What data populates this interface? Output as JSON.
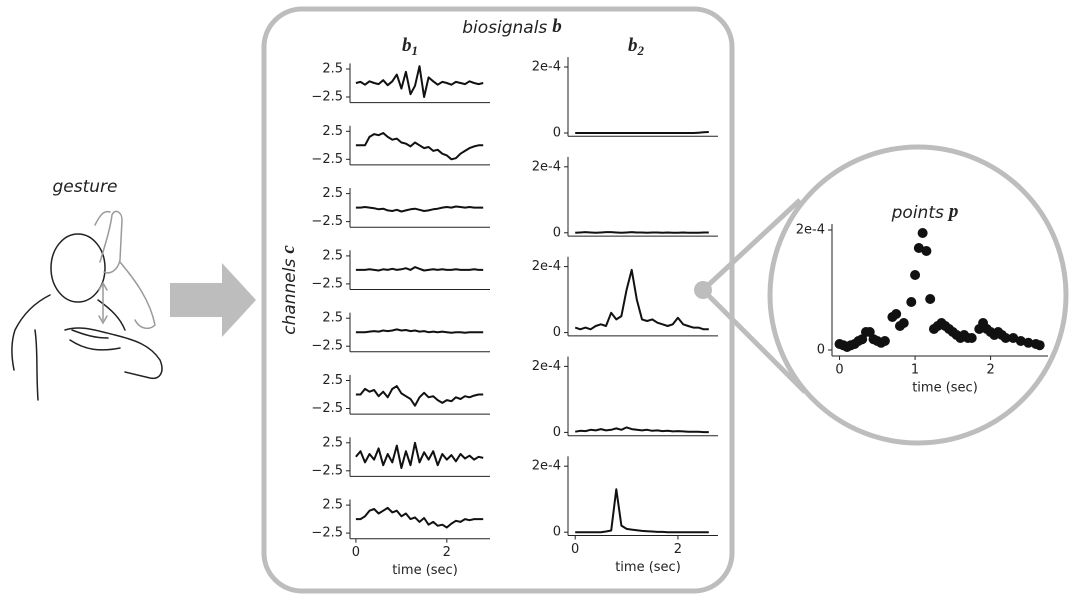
{
  "gesture_label": "gesture",
  "biosignals": {
    "title": "biosignals",
    "title_symbol": "b",
    "channels_label": "channels",
    "channels_symbol": "c",
    "b1": {
      "label": "b",
      "subscript": "1",
      "xlim": [
        -0.13,
        2.95
      ],
      "ylim": [
        -3.5,
        3.5
      ],
      "yticks": [
        2.5,
        {
          "value": -2.5,
          "label": "−2.5"
        }
      ],
      "xticks": [
        0,
        2
      ],
      "xlabel": "time (sec)",
      "x": [
        0,
        0.1,
        0.2,
        0.3,
        0.4,
        0.5,
        0.6,
        0.7,
        0.8,
        0.9,
        1,
        1.1,
        1.2,
        1.3,
        1.4,
        1.5,
        1.6,
        1.7,
        1.8,
        1.9,
        2,
        2.1,
        2.2,
        2.3,
        2.4,
        2.5,
        2.6,
        2.7,
        2.8
      ],
      "channels": [
        [
          0,
          0.2,
          -0.3,
          0.3,
          0,
          -0.2,
          0.5,
          -0.4,
          0.3,
          1.5,
          -1,
          2,
          -2,
          -0.5,
          3,
          -2.5,
          1,
          0.3,
          -0.3,
          0.2,
          0,
          -0.3,
          0.2,
          0,
          -0.2,
          0.3,
          0,
          -0.2,
          0
        ],
        [
          0,
          0,
          0,
          1.5,
          2,
          1.8,
          2.2,
          1.5,
          1,
          1.2,
          0.5,
          0.3,
          -0.2,
          0.5,
          0,
          -0.5,
          -0.3,
          -1,
          -0.8,
          -1.5,
          -1.8,
          -2.5,
          -2.3,
          -1.5,
          -1,
          -0.5,
          -0.2,
          0,
          0
        ],
        [
          0,
          0,
          0.1,
          0,
          -0.1,
          -0.3,
          -0.2,
          -0.5,
          -0.6,
          -0.4,
          -0.7,
          -0.5,
          -0.3,
          -0.2,
          -0.4,
          -0.6,
          -0.5,
          -0.3,
          -0.2,
          0,
          0.1,
          0,
          0.2,
          0.1,
          0,
          0.1,
          0,
          0,
          0
        ],
        [
          0,
          0,
          0,
          0.1,
          0,
          -0.1,
          0.1,
          0,
          0.2,
          0,
          0.1,
          0.3,
          0,
          0.5,
          0.2,
          -0.1,
          0,
          0.1,
          0,
          0.1,
          0,
          0,
          0.1,
          0,
          0,
          0,
          0.1,
          0,
          0
        ],
        [
          0,
          0,
          0,
          0.1,
          0.2,
          0.1,
          0.3,
          0.2,
          0.3,
          0.5,
          0.3,
          0.4,
          0.2,
          0.3,
          0.1,
          0.2,
          0,
          0.1,
          0,
          0.1,
          0,
          -0.1,
          0,
          0,
          -0.1,
          0,
          0,
          0,
          0
        ],
        [
          0,
          0,
          1,
          0.5,
          0.8,
          -0.3,
          0.5,
          -0.5,
          1,
          1.5,
          0.2,
          -0.3,
          -0.8,
          -2,
          -0.5,
          0.3,
          -0.5,
          -0.3,
          -1,
          -1.5,
          -1,
          -1.2,
          -0.5,
          -0.8,
          -0.3,
          -0.5,
          -0.2,
          0,
          0
        ],
        [
          0,
          1,
          -1,
          0.5,
          -0.5,
          1.5,
          -1.5,
          0.5,
          -1,
          2,
          -2,
          1,
          -1.5,
          2.5,
          -1,
          0.8,
          -0.5,
          1,
          -1.5,
          0.5,
          -0.5,
          0.3,
          -0.8,
          0.5,
          -0.3,
          0.2,
          -0.5,
          0,
          -0.2
        ],
        [
          0,
          0,
          0.5,
          1.5,
          1.8,
          1,
          1.5,
          2,
          1.2,
          1.5,
          0.5,
          1,
          0,
          0.3,
          -0.5,
          0.2,
          -1,
          -0.5,
          -1.2,
          -1,
          -1.5,
          -0.8,
          -0.3,
          -0.5,
          0,
          -0.2,
          0,
          0,
          0
        ]
      ]
    },
    "b2": {
      "label": "b",
      "subscript": "2",
      "xlim": [
        -0.14,
        2.78
      ],
      "ylim": [
        -1e-05,
        0.00023
      ],
      "yticks": [
        {
          "value": 0.0002,
          "label": "2e-4"
        },
        0
      ],
      "xticks": [
        0,
        2
      ],
      "xlabel": "time (sec)",
      "x": [
        0,
        0.1,
        0.2,
        0.3,
        0.4,
        0.5,
        0.6,
        0.7,
        0.8,
        0.9,
        1,
        1.1,
        1.2,
        1.3,
        1.4,
        1.5,
        1.6,
        1.7,
        1.8,
        1.9,
        2,
        2.1,
        2.2,
        2.3,
        2.4,
        2.5,
        2.6
      ],
      "channels": [
        [
          0,
          0,
          0,
          0,
          0,
          0,
          0,
          0,
          0,
          0,
          0,
          0,
          0,
          0,
          0,
          0,
          0,
          0,
          0,
          0,
          0,
          0,
          0,
          0,
          1e-06,
          2e-06,
          3e-06
        ],
        [
          0,
          1e-06,
          2e-06,
          1e-06,
          0,
          1e-06,
          2e-06,
          2e-06,
          1e-06,
          0,
          1e-06,
          2e-06,
          1e-06,
          1e-06,
          0,
          1e-06,
          1e-06,
          0,
          1e-06,
          0,
          0,
          1e-06,
          0,
          0,
          0,
          1e-06,
          1e-06
        ],
        [
          1.5e-05,
          1e-05,
          1.5e-05,
          1e-05,
          2e-05,
          2.5e-05,
          2e-05,
          6e-05,
          4e-05,
          5e-05,
          0.00013,
          0.00019,
          0.0001,
          4e-05,
          3.5e-05,
          4e-05,
          3e-05,
          2.5e-05,
          2e-05,
          2.5e-05,
          4.5e-05,
          2.5e-05,
          2e-05,
          1.5e-05,
          1.5e-05,
          1e-05,
          1e-05
        ],
        [
          2e-06,
          5e-06,
          4e-06,
          8e-06,
          6e-06,
          1e-05,
          6e-06,
          8e-06,
          1.2e-05,
          8e-06,
          1.5e-05,
          1e-05,
          8e-06,
          6e-06,
          8e-06,
          5e-06,
          6e-06,
          4e-06,
          5e-06,
          3e-06,
          4e-06,
          3e-06,
          2e-06,
          2e-06,
          2e-06,
          1e-06,
          1e-06
        ],
        [
          0,
          0,
          0,
          0,
          0,
          0,
          2e-06,
          5e-06,
          0.00013,
          2e-05,
          1e-05,
          8e-06,
          6e-06,
          4e-06,
          3e-06,
          2e-06,
          1e-06,
          1e-06,
          0,
          0,
          0,
          0,
          0,
          0,
          0,
          0,
          0
        ]
      ]
    }
  },
  "points": {
    "title": "points",
    "symbol": "p",
    "xlim": [
      -0.1,
      2.76
    ],
    "ylim": [
      -1e-05,
      0.00021
    ],
    "yticks": [
      {
        "value": 0.0002,
        "label": "2e-4"
      },
      0
    ],
    "xticks": [
      0,
      1,
      2
    ],
    "xlabel": "time (sec)",
    "x": [
      0,
      0.05,
      0.1,
      0.15,
      0.2,
      0.25,
      0.3,
      0.35,
      0.4,
      0.45,
      0.5,
      0.55,
      0.6,
      0.7,
      0.75,
      0.8,
      0.85,
      0.95,
      1,
      1.05,
      1.1,
      1.15,
      1.2,
      1.25,
      1.3,
      1.35,
      1.4,
      1.45,
      1.5,
      1.55,
      1.6,
      1.65,
      1.7,
      1.75,
      1.85,
      1.9,
      1.95,
      2,
      2.05,
      2.1,
      2.15,
      2.2,
      2.3,
      2.4,
      2.5,
      2.6,
      2.65
    ],
    "values": [
      1e-05,
      8e-06,
      5e-06,
      8e-06,
      1e-05,
      1.5e-05,
      1.8e-05,
      3e-05,
      3e-05,
      1.8e-05,
      1.5e-05,
      1.2e-05,
      1.5e-05,
      5.5e-05,
      6e-05,
      4e-05,
      4.5e-05,
      8e-05,
      0.000125,
      0.00017,
      0.000195,
      0.000165,
      8.5e-05,
      3.5e-05,
      4e-05,
      4.5e-05,
      4e-05,
      3.5e-05,
      3e-05,
      2.5e-05,
      2e-05,
      2.5e-05,
      2e-05,
      2e-05,
      3.5e-05,
      4.5e-05,
      3.5e-05,
      3e-05,
      2.5e-05,
      3e-05,
      2.5e-05,
      2e-05,
      2e-05,
      1.5e-05,
      1.2e-05,
      1e-05,
      8e-06
    ]
  }
}
